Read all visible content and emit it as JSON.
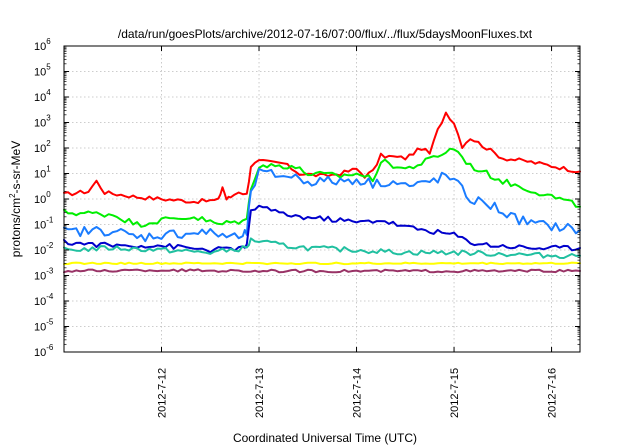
{
  "chart_data": {
    "type": "line",
    "title": "/data/run/goesPlots/archive/2012-07-16/07:00/flux/../flux/5daysMoonFluxes.txt",
    "xlabel": "Coordinated Universal Time (UTC)",
    "ylabel_parts": [
      "protons/cm",
      "2",
      "-s-sr-MeV"
    ],
    "y_scale": "log",
    "ylim_exponents": [
      -6,
      6
    ],
    "y_ticks": [
      {
        "base": "10",
        "exp": "-6"
      },
      {
        "base": "10",
        "exp": "-5"
      },
      {
        "base": "10",
        "exp": "-4"
      },
      {
        "base": "10",
        "exp": "-3"
      },
      {
        "base": "10",
        "exp": "-2"
      },
      {
        "base": "10",
        "exp": "-1"
      },
      {
        "base": "10",
        "exp": "0"
      },
      {
        "base": "10",
        "exp": "1"
      },
      {
        "base": "10",
        "exp": "2"
      },
      {
        "base": "10",
        "exp": "3"
      },
      {
        "base": "10",
        "exp": "4"
      },
      {
        "base": "10",
        "exp": "5"
      },
      {
        "base": "10",
        "exp": "6"
      }
    ],
    "x_range_days": [
      "2012-07-11",
      "2012-07-16 07:00"
    ],
    "x_ticks": [
      "2012-7-12",
      "2012-7-13",
      "2012-7-14",
      "2012-7-15",
      "2012-7-16"
    ],
    "grid": true,
    "series": [
      {
        "color": "#ff0000",
        "points": [
          [
            "2012-07-11 00:00",
            1.5
          ],
          [
            "2012-07-11 06:00",
            2.0
          ],
          [
            "2012-07-11 08:00",
            5.0
          ],
          [
            "2012-07-11 10:00",
            1.8
          ],
          [
            "2012-07-11 18:00",
            1.2
          ],
          [
            "2012-07-12 00:00",
            1.0
          ],
          [
            "2012-07-12 08:00",
            0.8
          ],
          [
            "2012-07-12 14:00",
            0.9
          ],
          [
            "2012-07-12 15:00",
            3.0
          ],
          [
            "2012-07-12 16:00",
            1.0
          ],
          [
            "2012-07-12 17:00",
            1.2
          ],
          [
            "2012-07-12 19:00",
            2.0
          ],
          [
            "2012-07-12 21:00",
            1.5
          ],
          [
            "2012-07-12 22:00",
            20.0
          ],
          [
            "2012-07-13 00:00",
            30.0
          ],
          [
            "2012-07-13 06:00",
            25.0
          ],
          [
            "2012-07-13 10:00",
            10.0
          ],
          [
            "2012-07-13 16:00",
            8.0
          ],
          [
            "2012-07-13 20:00",
            10.0
          ],
          [
            "2012-07-14 00:00",
            15.0
          ],
          [
            "2012-07-14 02:00",
            8.0
          ],
          [
            "2012-07-14 04:00",
            12.0
          ],
          [
            "2012-07-14 06:00",
            50.0
          ],
          [
            "2012-07-14 12:00",
            40.0
          ],
          [
            "2012-07-14 16:00",
            100.0
          ],
          [
            "2012-07-14 18:00",
            60.0
          ],
          [
            "2012-07-14 20:00",
            500.0
          ],
          [
            "2012-07-14 22:00",
            2500.0
          ],
          [
            "2012-07-15 00:00",
            1000.0
          ],
          [
            "2012-07-15 02:00",
            120.0
          ],
          [
            "2012-07-15 04:00",
            250.0
          ],
          [
            "2012-07-15 08:00",
            100.0
          ],
          [
            "2012-07-15 12:00",
            40.0
          ],
          [
            "2012-07-15 18:00",
            30.0
          ],
          [
            "2012-07-16 00:00",
            20.0
          ],
          [
            "2012-07-16 07:00",
            12.0
          ]
        ]
      },
      {
        "color": "#00ee00",
        "points": [
          [
            "2012-07-11 00:00",
            0.3
          ],
          [
            "2012-07-11 12:00",
            0.25
          ],
          [
            "2012-07-11 18:00",
            0.1
          ],
          [
            "2012-07-12 00:00",
            0.15
          ],
          [
            "2012-07-12 08:00",
            0.2
          ],
          [
            "2012-07-12 14:00",
            0.1
          ],
          [
            "2012-07-12 21:00",
            0.15
          ],
          [
            "2012-07-12 22:00",
            3.0
          ],
          [
            "2012-07-13 00:00",
            20.0
          ],
          [
            "2012-07-13 08:00",
            20.0
          ],
          [
            "2012-07-13 12:00",
            10.0
          ],
          [
            "2012-07-13 20:00",
            8.0
          ],
          [
            "2012-07-14 00:00",
            10.0
          ],
          [
            "2012-07-14 04:00",
            6.0
          ],
          [
            "2012-07-14 06:00",
            30.0
          ],
          [
            "2012-07-14 12:00",
            15.0
          ],
          [
            "2012-07-14 16:00",
            25.0
          ],
          [
            "2012-07-14 20:00",
            50.0
          ],
          [
            "2012-07-15 00:00",
            100.0
          ],
          [
            "2012-07-15 04:00",
            20.0
          ],
          [
            "2012-07-15 12:00",
            5.0
          ],
          [
            "2012-07-15 20:00",
            2.0
          ],
          [
            "2012-07-16 02:00",
            1.0
          ],
          [
            "2012-07-16 07:00",
            0.5
          ]
        ]
      },
      {
        "color": "#1a7cff",
        "points": [
          [
            "2012-07-11 00:00",
            0.05
          ],
          [
            "2012-07-11 12:00",
            0.06
          ],
          [
            "2012-07-11 18:00",
            0.03
          ],
          [
            "2012-07-12 00:00",
            0.04
          ],
          [
            "2012-07-12 10:00",
            0.05
          ],
          [
            "2012-07-12 20:00",
            0.03
          ],
          [
            "2012-07-12 21:00",
            0.05
          ],
          [
            "2012-07-12 22:00",
            2.0
          ],
          [
            "2012-07-13 00:00",
            10.0
          ],
          [
            "2012-07-13 08:00",
            8.0
          ],
          [
            "2012-07-13 12:00",
            5.0
          ],
          [
            "2012-07-13 20:00",
            5.0
          ],
          [
            "2012-07-14 00:00",
            6.0
          ],
          [
            "2012-07-14 04:00",
            4.0
          ],
          [
            "2012-07-14 08:00",
            5.0
          ],
          [
            "2012-07-14 14:00",
            3.0
          ],
          [
            "2012-07-14 22:00",
            8.0
          ],
          [
            "2012-07-15 00:00",
            5.0
          ],
          [
            "2012-07-15 04:00",
            1.0
          ],
          [
            "2012-07-15 10:00",
            0.5
          ],
          [
            "2012-07-15 14:00",
            0.2
          ],
          [
            "2012-07-15 20:00",
            0.1
          ],
          [
            "2012-07-16 02:00",
            0.08
          ],
          [
            "2012-07-16 07:00",
            0.06
          ]
        ]
      },
      {
        "color": "#0000cc",
        "points": [
          [
            "2012-07-11 00:00",
            0.02
          ],
          [
            "2012-07-11 12:00",
            0.015
          ],
          [
            "2012-07-12 00:00",
            0.015
          ],
          [
            "2012-07-12 12:00",
            0.01
          ],
          [
            "2012-07-12 20:00",
            0.012
          ],
          [
            "2012-07-12 21:00",
            0.015
          ],
          [
            "2012-07-12 22:00",
            0.3
          ],
          [
            "2012-07-13 00:00",
            0.6
          ],
          [
            "2012-07-13 04:00",
            0.3
          ],
          [
            "2012-07-13 10:00",
            0.2
          ],
          [
            "2012-07-13 20:00",
            0.15
          ],
          [
            "2012-07-14 00:00",
            0.12
          ],
          [
            "2012-07-14 06:00",
            0.15
          ],
          [
            "2012-07-14 12:00",
            0.08
          ],
          [
            "2012-07-14 20:00",
            0.05
          ],
          [
            "2012-07-15 00:00",
            0.04
          ],
          [
            "2012-07-15 04:00",
            0.02
          ],
          [
            "2012-07-15 10:00",
            0.015
          ],
          [
            "2012-07-15 20:00",
            0.012
          ],
          [
            "2012-07-16 07:00",
            0.012
          ]
        ]
      },
      {
        "color": "#20c0a0",
        "points": [
          [
            "2012-07-11 00:00",
            0.01
          ],
          [
            "2012-07-11 12:00",
            0.012
          ],
          [
            "2012-07-12 00:00",
            0.01
          ],
          [
            "2012-07-12 12:00",
            0.008
          ],
          [
            "2012-07-12 21:00",
            0.012
          ],
          [
            "2012-07-12 22:00",
            0.025
          ],
          [
            "2012-07-13 06:00",
            0.015
          ],
          [
            "2012-07-13 12:00",
            0.012
          ],
          [
            "2012-07-14 00:00",
            0.01
          ],
          [
            "2012-07-14 12:00",
            0.008
          ],
          [
            "2012-07-15 00:00",
            0.008
          ],
          [
            "2012-07-15 12:00",
            0.007
          ],
          [
            "2012-07-16 00:00",
            0.006
          ],
          [
            "2012-07-16 07:00",
            0.006
          ]
        ]
      },
      {
        "color": "#ffff00",
        "points": [
          [
            "2012-07-11 00:00",
            0.003
          ],
          [
            "2012-07-12 00:00",
            0.003
          ],
          [
            "2012-07-13 00:00",
            0.003
          ],
          [
            "2012-07-14 00:00",
            0.003
          ],
          [
            "2012-07-15 00:00",
            0.003
          ],
          [
            "2012-07-16 07:00",
            0.003
          ]
        ]
      },
      {
        "color": "#993366",
        "points": [
          [
            "2012-07-11 00:00",
            0.0015
          ],
          [
            "2012-07-12 00:00",
            0.0016
          ],
          [
            "2012-07-13 00:00",
            0.0015
          ],
          [
            "2012-07-14 00:00",
            0.0015
          ],
          [
            "2012-07-15 00:00",
            0.0015
          ],
          [
            "2012-07-16 07:00",
            0.0015
          ]
        ]
      }
    ]
  }
}
